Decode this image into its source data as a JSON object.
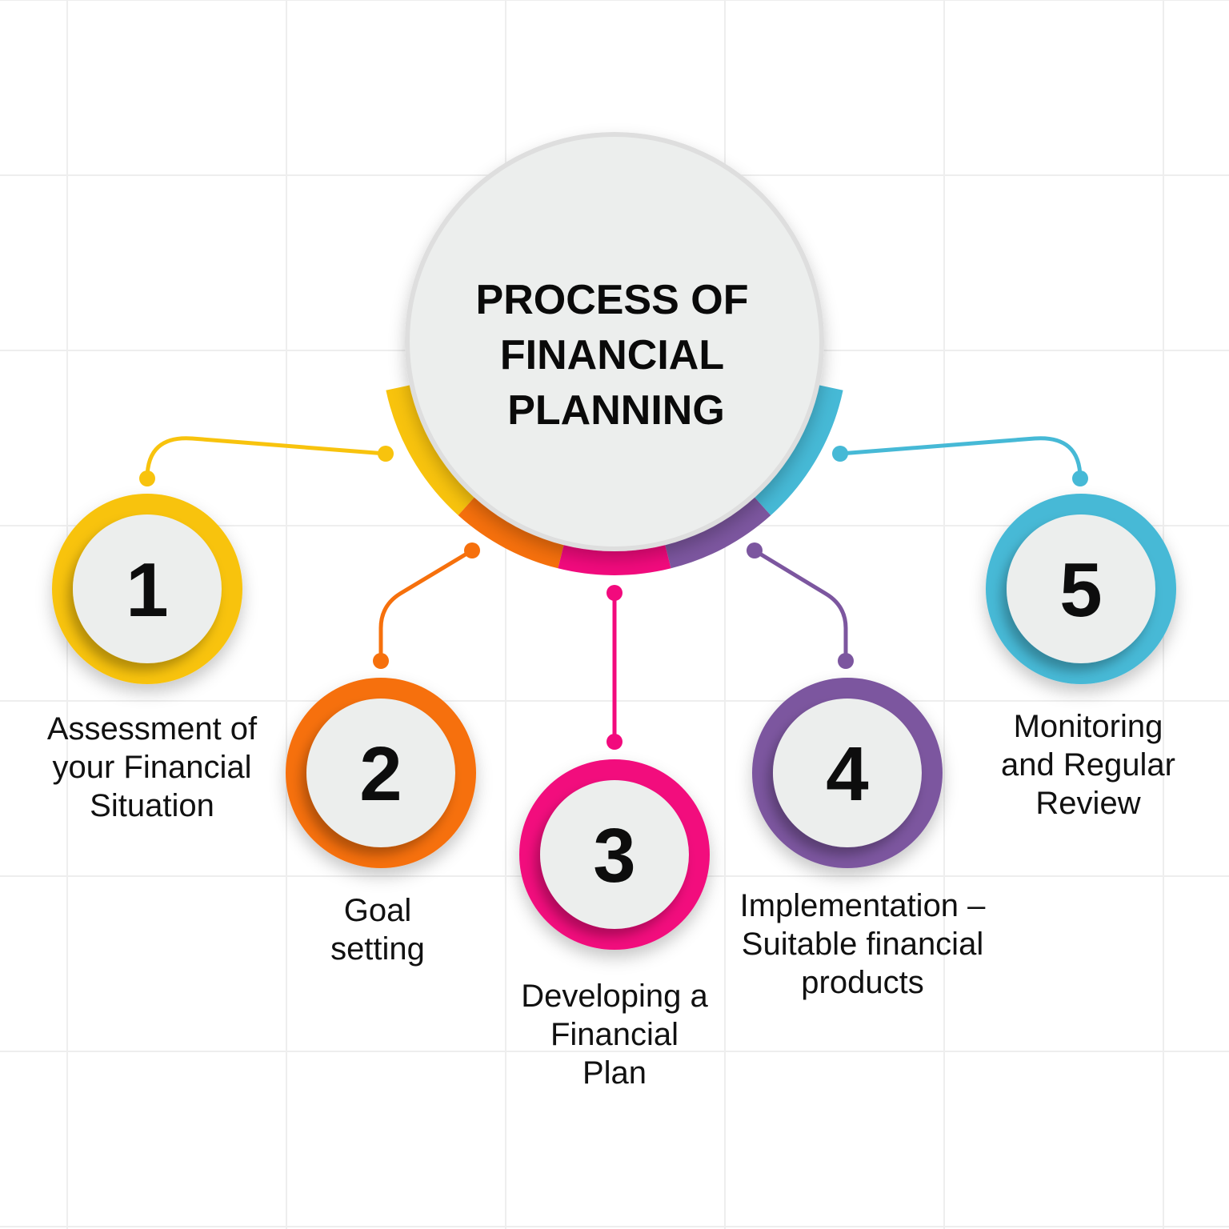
{
  "title": {
    "lines": [
      "PROCESS OF",
      "FINANCIAL",
      "PLANNING"
    ]
  },
  "colors": {
    "background": "#ffffff",
    "grid": "#eeeeee",
    "circle_fill": "#eceeed",
    "step1": "#f8c30d",
    "step2": "#f6700c",
    "step3": "#f20a7d",
    "step4": "#7c569f",
    "step5": "#46b9d6"
  },
  "steps": [
    {
      "number": "1",
      "color": "#f8c30d",
      "label_lines": [
        "Assessment of",
        "your Financial",
        "Situation"
      ]
    },
    {
      "number": "2",
      "color": "#f6700c",
      "label_lines": [
        "Goal",
        "setting"
      ]
    },
    {
      "number": "3",
      "color": "#f20a7d",
      "label_lines": [
        "Developing a",
        "Financial",
        "Plan"
      ]
    },
    {
      "number": "4",
      "color": "#7c569f",
      "label_lines": [
        "Implementation –",
        "Suitable financial",
        "products"
      ]
    },
    {
      "number": "5",
      "color": "#46b9d6",
      "label_lines": [
        "Monitoring",
        "and Regular",
        "Review"
      ]
    }
  ]
}
